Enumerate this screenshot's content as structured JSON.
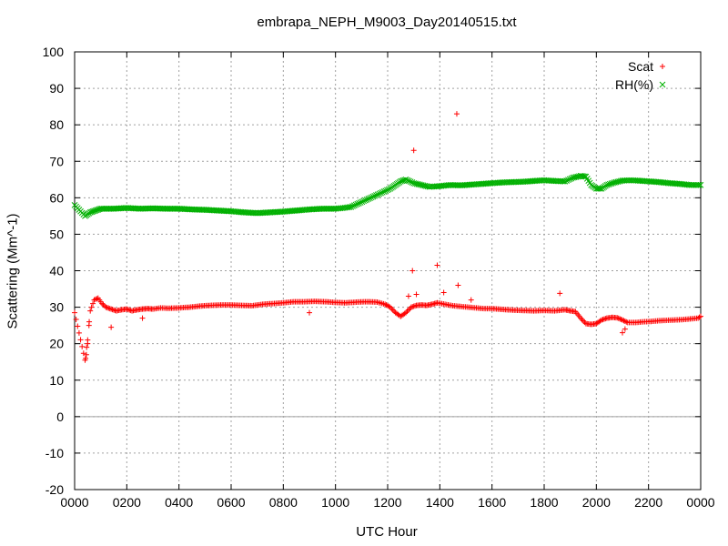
{
  "chart_data": {
    "type": "scatter",
    "title": "embrapa_NEPH_M9003_Day20140515.txt",
    "xlabel": "UTC Hour",
    "ylabel": "Scattering (Mm^-1)",
    "xlim": [
      0,
      24
    ],
    "ylim": [
      -20,
      100
    ],
    "x_ticks": [
      0,
      2,
      4,
      6,
      8,
      10,
      12,
      14,
      16,
      18,
      20,
      22,
      24
    ],
    "x_tick_labels": [
      "0000",
      "0200",
      "0400",
      "0600",
      "0800",
      "1000",
      "1200",
      "1400",
      "1600",
      "1800",
      "2000",
      "2200",
      "0000"
    ],
    "y_ticks": [
      -20,
      -10,
      0,
      10,
      20,
      30,
      40,
      50,
      60,
      70,
      80,
      90,
      100
    ],
    "y_tick_labels": [
      "-20",
      "-10",
      "0",
      "10",
      "20",
      "30",
      "40",
      "50",
      "60",
      "70",
      "80",
      "90",
      "100"
    ],
    "grid": true,
    "zero_line": true,
    "legend_position": "top-right",
    "series": [
      {
        "name": "Scat",
        "marker": "+",
        "color": "#ff0000",
        "x": [
          0.0,
          0.4,
          0.45,
          0.5,
          0.55,
          0.6,
          0.65,
          0.75,
          0.9,
          1.05,
          1.2,
          1.4,
          1.6,
          1.8,
          2.0,
          2.2,
          2.4,
          2.6,
          2.8,
          3.0,
          3.3,
          3.6,
          4.0,
          4.4,
          4.8,
          5.2,
          5.6,
          6.0,
          6.4,
          6.8,
          7.2,
          7.6,
          8.0,
          8.4,
          8.8,
          9.2,
          9.6,
          10.0,
          10.4,
          10.8,
          11.2,
          11.6,
          11.9,
          12.1,
          12.3,
          12.5,
          12.7,
          12.9,
          13.1,
          13.3,
          13.5,
          13.7,
          13.9,
          14.2,
          14.5,
          14.8,
          15.1,
          15.4,
          15.7,
          16.0,
          16.4,
          16.8,
          17.2,
          17.6,
          18.0,
          18.4,
          18.8,
          19.0,
          19.2,
          19.4,
          19.6,
          19.8,
          20.0,
          20.2,
          20.4,
          20.6,
          20.8,
          21.0,
          21.2,
          21.5,
          21.8,
          22.1,
          22.4,
          22.7,
          23.0,
          23.3,
          23.6,
          23.9,
          24.0
        ],
        "y": [
          28.5,
          15.5,
          17.0,
          20.0,
          25.0,
          29.0,
          30.0,
          32.0,
          32.5,
          31.0,
          30.0,
          29.5,
          29.0,
          29.3,
          29.5,
          29.0,
          29.3,
          29.5,
          29.6,
          29.5,
          29.8,
          29.7,
          29.8,
          30.0,
          30.3,
          30.5,
          30.6,
          30.6,
          30.5,
          30.4,
          30.8,
          31.0,
          31.2,
          31.5,
          31.5,
          31.6,
          31.5,
          31.3,
          31.2,
          31.4,
          31.5,
          31.4,
          30.8,
          30.0,
          28.5,
          27.5,
          28.5,
          30.0,
          30.5,
          30.6,
          30.5,
          30.8,
          31.2,
          30.8,
          30.4,
          30.2,
          30.0,
          29.8,
          29.6,
          29.6,
          29.4,
          29.2,
          29.1,
          29.0,
          29.1,
          29.0,
          29.3,
          29.0,
          28.8,
          27.0,
          25.5,
          25.3,
          25.5,
          26.5,
          27.0,
          27.2,
          27.1,
          26.5,
          25.8,
          25.8,
          26.0,
          26.1,
          26.3,
          26.4,
          26.5,
          26.6,
          26.8,
          27.0,
          27.5
        ],
        "outliers_x": [
          0.42,
          0.46,
          0.5,
          0.56,
          1.4,
          2.6,
          9.0,
          12.8,
          12.95,
          13.0,
          13.1,
          13.9,
          14.15,
          14.65,
          14.7,
          15.2,
          18.6,
          21.0,
          21.1
        ],
        "outliers_y": [
          16.0,
          19.0,
          21.0,
          26.0,
          24.5,
          27.0,
          28.5,
          33.0,
          40.0,
          73.0,
          33.5,
          41.5,
          34.0,
          83.0,
          36.0,
          32.0,
          33.8,
          23.0,
          24.0
        ]
      },
      {
        "name": "RH(%)",
        "marker": "x",
        "color": "#00b000",
        "x": [
          0.0,
          0.4,
          0.6,
          0.8,
          1.0,
          1.5,
          2.0,
          2.5,
          3.0,
          3.5,
          4.0,
          4.5,
          5.0,
          5.5,
          6.0,
          6.5,
          7.0,
          7.5,
          8.0,
          8.5,
          9.0,
          9.5,
          10.0,
          10.3,
          10.6,
          10.9,
          11.2,
          11.5,
          11.8,
          12.1,
          12.3,
          12.5,
          12.7,
          13.0,
          13.3,
          13.6,
          14.0,
          14.4,
          14.8,
          15.2,
          15.6,
          16.0,
          16.4,
          16.8,
          17.2,
          17.6,
          18.0,
          18.4,
          18.8,
          19.1,
          19.4,
          19.6,
          19.8,
          20.0,
          20.2,
          20.4,
          20.7,
          21.0,
          21.3,
          21.6,
          22.0,
          22.4,
          22.8,
          23.2,
          23.6,
          24.0
        ],
        "y": [
          58.0,
          55.0,
          56.0,
          56.5,
          57.0,
          57.0,
          57.2,
          57.0,
          57.1,
          57.0,
          57.0,
          56.8,
          56.7,
          56.5,
          56.3,
          56.0,
          55.8,
          56.0,
          56.2,
          56.5,
          56.8,
          57.0,
          57.0,
          57.2,
          57.5,
          58.5,
          59.5,
          60.5,
          61.5,
          62.5,
          63.5,
          64.5,
          65.0,
          64.0,
          63.5,
          63.0,
          63.2,
          63.5,
          63.4,
          63.6,
          63.8,
          64.0,
          64.2,
          64.3,
          64.4,
          64.6,
          64.8,
          64.6,
          64.5,
          65.5,
          66.0,
          65.8,
          63.5,
          62.5,
          62.5,
          63.5,
          64.2,
          64.7,
          64.8,
          64.7,
          64.5,
          64.3,
          64.0,
          63.8,
          63.5,
          63.5
        ]
      }
    ]
  }
}
